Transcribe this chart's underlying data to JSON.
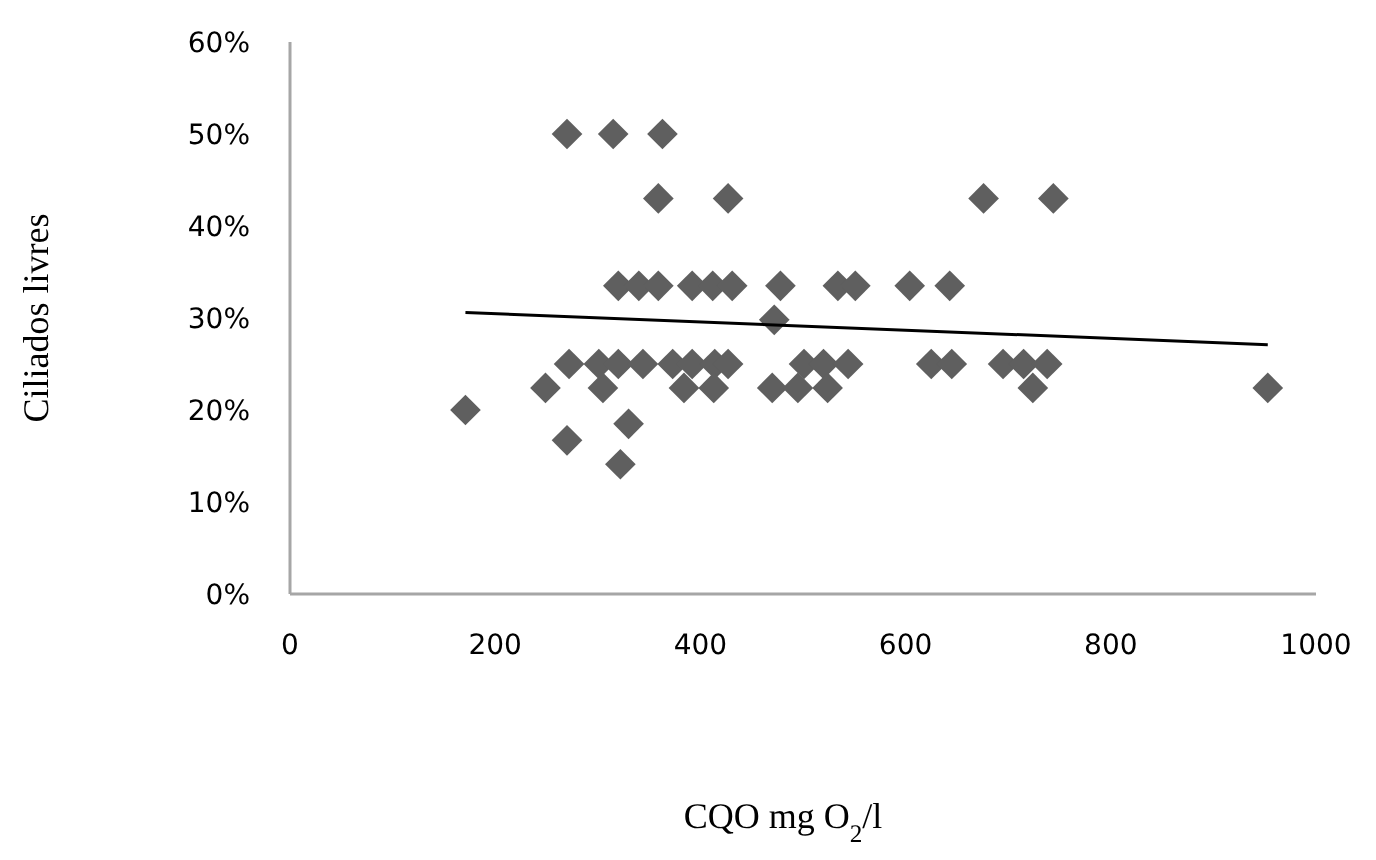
{
  "chart_data": {
    "type": "scatter",
    "xlabel": "CQO mg O$_{2}$/l",
    "ylabel": "Ciliados livres",
    "xlim": [
      0,
      1000
    ],
    "xticks": [
      0,
      200,
      400,
      600,
      800,
      1000
    ],
    "ylim": [
      0,
      60
    ],
    "yticks": [
      {
        "value": 0,
        "label": "0%"
      },
      {
        "value": 10,
        "label": "10%"
      },
      {
        "value": 20,
        "label": "20%"
      },
      {
        "value": 30,
        "label": "30%"
      },
      {
        "value": 40,
        "label": "40%"
      },
      {
        "value": 50,
        "label": "50%"
      },
      {
        "value": 60,
        "label": "60%"
      }
    ],
    "grid": false,
    "marker": "diamond",
    "series": [
      {
        "color": "#5f5f5f",
        "x": [
          270,
          315,
          363,
          359,
          427,
          676,
          744,
          320,
          340,
          359,
          392,
          412,
          431,
          478,
          534,
          551,
          604,
          643,
          472,
          272,
          301,
          320,
          344,
          373,
          392,
          414,
          427,
          501,
          520,
          544,
          625,
          645,
          695,
          715,
          738,
          249,
          305,
          384,
          413,
          470,
          495,
          524,
          724,
          953,
          171,
          270,
          330,
          322
        ],
        "values": [
          50,
          50,
          50,
          43,
          43,
          43,
          43,
          33.5,
          33.5,
          33.5,
          33.5,
          33.5,
          33.5,
          33.5,
          33.5,
          33.5,
          33.5,
          33.5,
          29.8,
          25,
          25,
          25,
          25,
          25,
          25,
          25,
          25,
          25,
          25,
          25,
          25,
          25,
          25,
          25,
          25,
          22.4,
          22.4,
          22.4,
          22.4,
          22.4,
          22.4,
          22.4,
          22.4,
          22.4,
          20,
          16.7,
          18.5,
          14.1
        ]
      },
      {
        "type": "line",
        "color": "#000000",
        "marker": "none",
        "x": [
          171,
          953
        ],
        "values": [
          30.6,
          27.1
        ]
      }
    ]
  }
}
